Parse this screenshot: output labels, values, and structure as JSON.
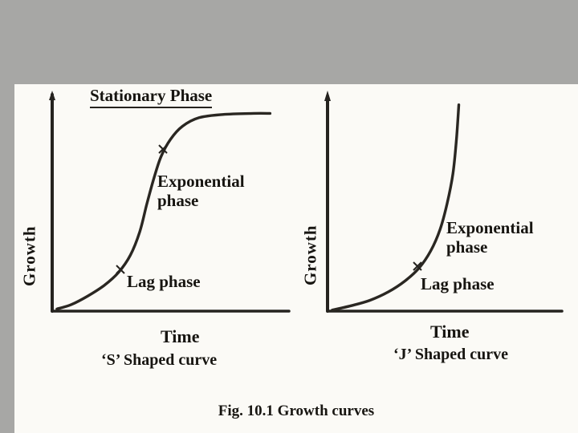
{
  "page": {
    "background_color": "#a7a7a5",
    "panel_color": "#fbfaf6",
    "ink_color": "#2a2722"
  },
  "figure": {
    "caption": "Fig. 10.1 Growth curves",
    "left_chart": {
      "stationary_label": "Stationary Phase",
      "exponential_line1": "Exponential",
      "exponential_line2": "phase",
      "lag_label": "Lag phase",
      "ylabel": "Growth",
      "xlabel": "Time",
      "title": "‘S’ Shaped curve"
    },
    "right_chart": {
      "exponential_line1": "Exponential",
      "exponential_line2": "phase",
      "lag_label": "Lag phase",
      "ylabel": "Growth",
      "xlabel": "Time",
      "title": "‘J’ Shaped curve"
    }
  },
  "chart_data": [
    {
      "type": "line",
      "title": "‘S’ Shaped curve",
      "xlabel": "Time",
      "ylabel": "Growth",
      "annotations": [
        "Stationary Phase",
        "Exponential phase",
        "Lag phase"
      ],
      "legend": "none",
      "grid": false,
      "xlim": [
        0,
        1
      ],
      "ylim": [
        0,
        1
      ],
      "x": [
        0.02,
        0.08,
        0.15,
        0.22,
        0.28,
        0.33,
        0.37,
        0.4,
        0.43,
        0.46,
        0.5,
        0.55,
        0.62,
        0.72,
        0.85,
        0.92
      ],
      "y": [
        0.01,
        0.03,
        0.07,
        0.12,
        0.18,
        0.26,
        0.37,
        0.5,
        0.62,
        0.72,
        0.8,
        0.86,
        0.9,
        0.915,
        0.92,
        0.92
      ]
    },
    {
      "type": "line",
      "title": "‘J’ Shaped curve",
      "xlabel": "Time",
      "ylabel": "Growth",
      "annotations": [
        "Exponential phase",
        "Lag phase"
      ],
      "legend": "none",
      "grid": false,
      "xlim": [
        0,
        1
      ],
      "ylim": [
        0,
        1
      ],
      "x": [
        0.02,
        0.1,
        0.18,
        0.26,
        0.33,
        0.39,
        0.44,
        0.48,
        0.51,
        0.535,
        0.55,
        0.56
      ],
      "y": [
        0.005,
        0.025,
        0.05,
        0.09,
        0.14,
        0.2,
        0.28,
        0.38,
        0.5,
        0.64,
        0.8,
        0.96
      ]
    }
  ]
}
